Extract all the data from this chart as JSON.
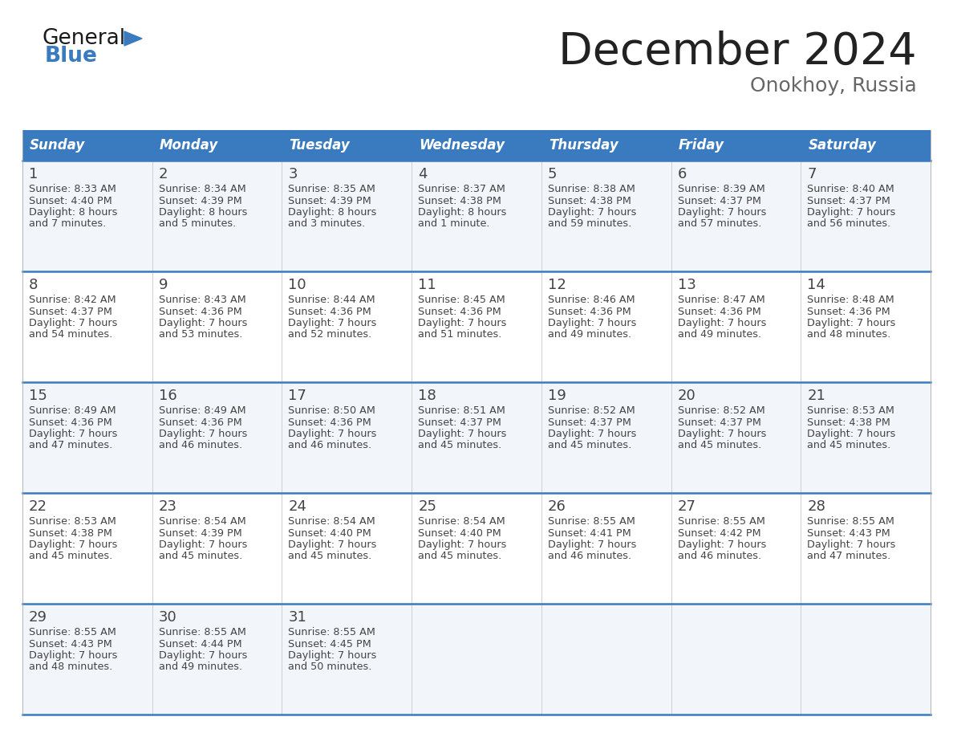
{
  "title": "December 2024",
  "subtitle": "Onokhoy, Russia",
  "header_bg_color": "#3a7bbf",
  "header_text_color": "#ffffff",
  "day_names": [
    "Sunday",
    "Monday",
    "Tuesday",
    "Wednesday",
    "Thursday",
    "Friday",
    "Saturday"
  ],
  "cell_bg_colors": [
    "#f2f6fa",
    "#ffffff"
  ],
  "divider_color": "#3a7bbf",
  "number_color": "#444444",
  "text_color": "#444444",
  "logo_general_color": "#1a1a1a",
  "logo_blue_color": "#3a7bbf",
  "title_color": "#222222",
  "subtitle_color": "#666666",
  "calendar": [
    [
      {
        "day": 1,
        "sunrise": "8:33 AM",
        "sunset": "4:40 PM",
        "daylight_line1": "8 hours",
        "daylight_line2": "and 7 minutes."
      },
      {
        "day": 2,
        "sunrise": "8:34 AM",
        "sunset": "4:39 PM",
        "daylight_line1": "8 hours",
        "daylight_line2": "and 5 minutes."
      },
      {
        "day": 3,
        "sunrise": "8:35 AM",
        "sunset": "4:39 PM",
        "daylight_line1": "8 hours",
        "daylight_line2": "and 3 minutes."
      },
      {
        "day": 4,
        "sunrise": "8:37 AM",
        "sunset": "4:38 PM",
        "daylight_line1": "8 hours",
        "daylight_line2": "and 1 minute."
      },
      {
        "day": 5,
        "sunrise": "8:38 AM",
        "sunset": "4:38 PM",
        "daylight_line1": "7 hours",
        "daylight_line2": "and 59 minutes."
      },
      {
        "day": 6,
        "sunrise": "8:39 AM",
        "sunset": "4:37 PM",
        "daylight_line1": "7 hours",
        "daylight_line2": "and 57 minutes."
      },
      {
        "day": 7,
        "sunrise": "8:40 AM",
        "sunset": "4:37 PM",
        "daylight_line1": "7 hours",
        "daylight_line2": "and 56 minutes."
      }
    ],
    [
      {
        "day": 8,
        "sunrise": "8:42 AM",
        "sunset": "4:37 PM",
        "daylight_line1": "7 hours",
        "daylight_line2": "and 54 minutes."
      },
      {
        "day": 9,
        "sunrise": "8:43 AM",
        "sunset": "4:36 PM",
        "daylight_line1": "7 hours",
        "daylight_line2": "and 53 minutes."
      },
      {
        "day": 10,
        "sunrise": "8:44 AM",
        "sunset": "4:36 PM",
        "daylight_line1": "7 hours",
        "daylight_line2": "and 52 minutes."
      },
      {
        "day": 11,
        "sunrise": "8:45 AM",
        "sunset": "4:36 PM",
        "daylight_line1": "7 hours",
        "daylight_line2": "and 51 minutes."
      },
      {
        "day": 12,
        "sunrise": "8:46 AM",
        "sunset": "4:36 PM",
        "daylight_line1": "7 hours",
        "daylight_line2": "and 49 minutes."
      },
      {
        "day": 13,
        "sunrise": "8:47 AM",
        "sunset": "4:36 PM",
        "daylight_line1": "7 hours",
        "daylight_line2": "and 49 minutes."
      },
      {
        "day": 14,
        "sunrise": "8:48 AM",
        "sunset": "4:36 PM",
        "daylight_line1": "7 hours",
        "daylight_line2": "and 48 minutes."
      }
    ],
    [
      {
        "day": 15,
        "sunrise": "8:49 AM",
        "sunset": "4:36 PM",
        "daylight_line1": "7 hours",
        "daylight_line2": "and 47 minutes."
      },
      {
        "day": 16,
        "sunrise": "8:49 AM",
        "sunset": "4:36 PM",
        "daylight_line1": "7 hours",
        "daylight_line2": "and 46 minutes."
      },
      {
        "day": 17,
        "sunrise": "8:50 AM",
        "sunset": "4:36 PM",
        "daylight_line1": "7 hours",
        "daylight_line2": "and 46 minutes."
      },
      {
        "day": 18,
        "sunrise": "8:51 AM",
        "sunset": "4:37 PM",
        "daylight_line1": "7 hours",
        "daylight_line2": "and 45 minutes."
      },
      {
        "day": 19,
        "sunrise": "8:52 AM",
        "sunset": "4:37 PM",
        "daylight_line1": "7 hours",
        "daylight_line2": "and 45 minutes."
      },
      {
        "day": 20,
        "sunrise": "8:52 AM",
        "sunset": "4:37 PM",
        "daylight_line1": "7 hours",
        "daylight_line2": "and 45 minutes."
      },
      {
        "day": 21,
        "sunrise": "8:53 AM",
        "sunset": "4:38 PM",
        "daylight_line1": "7 hours",
        "daylight_line2": "and 45 minutes."
      }
    ],
    [
      {
        "day": 22,
        "sunrise": "8:53 AM",
        "sunset": "4:38 PM",
        "daylight_line1": "7 hours",
        "daylight_line2": "and 45 minutes."
      },
      {
        "day": 23,
        "sunrise": "8:54 AM",
        "sunset": "4:39 PM",
        "daylight_line1": "7 hours",
        "daylight_line2": "and 45 minutes."
      },
      {
        "day": 24,
        "sunrise": "8:54 AM",
        "sunset": "4:40 PM",
        "daylight_line1": "7 hours",
        "daylight_line2": "and 45 minutes."
      },
      {
        "day": 25,
        "sunrise": "8:54 AM",
        "sunset": "4:40 PM",
        "daylight_line1": "7 hours",
        "daylight_line2": "and 45 minutes."
      },
      {
        "day": 26,
        "sunrise": "8:55 AM",
        "sunset": "4:41 PM",
        "daylight_line1": "7 hours",
        "daylight_line2": "and 46 minutes."
      },
      {
        "day": 27,
        "sunrise": "8:55 AM",
        "sunset": "4:42 PM",
        "daylight_line1": "7 hours",
        "daylight_line2": "and 46 minutes."
      },
      {
        "day": 28,
        "sunrise": "8:55 AM",
        "sunset": "4:43 PM",
        "daylight_line1": "7 hours",
        "daylight_line2": "and 47 minutes."
      }
    ],
    [
      {
        "day": 29,
        "sunrise": "8:55 AM",
        "sunset": "4:43 PM",
        "daylight_line1": "7 hours",
        "daylight_line2": "and 48 minutes."
      },
      {
        "day": 30,
        "sunrise": "8:55 AM",
        "sunset": "4:44 PM",
        "daylight_line1": "7 hours",
        "daylight_line2": "and 49 minutes."
      },
      {
        "day": 31,
        "sunrise": "8:55 AM",
        "sunset": "4:45 PM",
        "daylight_line1": "7 hours",
        "daylight_line2": "and 50 minutes."
      },
      null,
      null,
      null,
      null
    ]
  ]
}
